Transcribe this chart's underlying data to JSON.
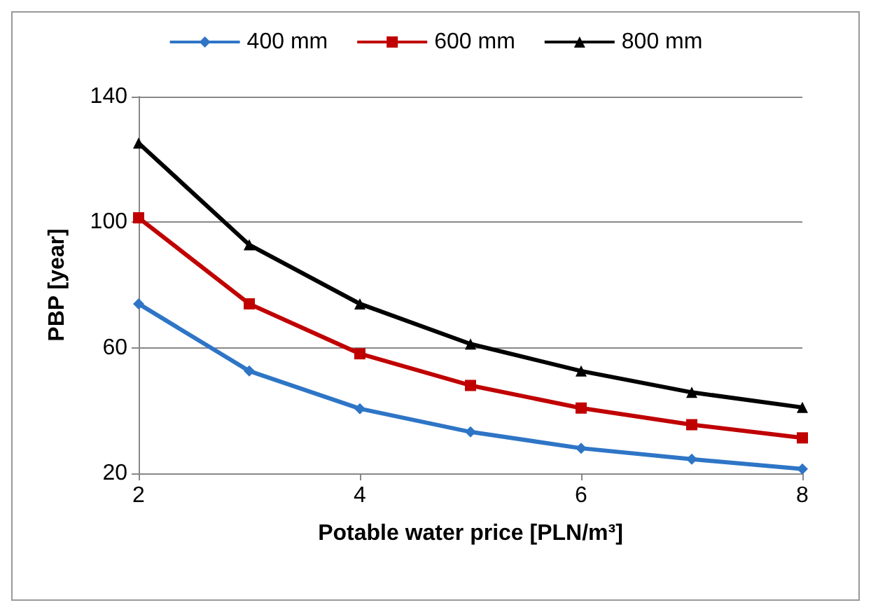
{
  "chart_data": {
    "type": "line",
    "xlabel": "Potable water price [PLN/m³]",
    "ylabel": "PBP [year]",
    "x": [
      2,
      3,
      4,
      5,
      6,
      7,
      8
    ],
    "series": [
      {
        "name": "400 mm",
        "color": "#2e75c6",
        "marker": "diamond",
        "values": [
          74,
          52.6,
          40.6,
          33.2,
          28,
          24.5,
          21.4
        ]
      },
      {
        "name": "600 mm",
        "color": "#c00000",
        "marker": "square",
        "values": [
          101.4,
          74,
          58.1,
          48,
          40.8,
          35.5,
          31.3
        ]
      },
      {
        "name": "800 mm",
        "color": "#000000",
        "marker": "triangle",
        "values": [
          125.2,
          92.8,
          74,
          61.2,
          52.6,
          45.8,
          41
        ]
      }
    ],
    "xlim": [
      2,
      8
    ],
    "xticks": [
      2,
      4,
      6,
      8
    ],
    "ylim": [
      20,
      140
    ],
    "yticks": [
      20,
      60,
      100,
      140
    ],
    "grid": "y",
    "legend": "top"
  }
}
